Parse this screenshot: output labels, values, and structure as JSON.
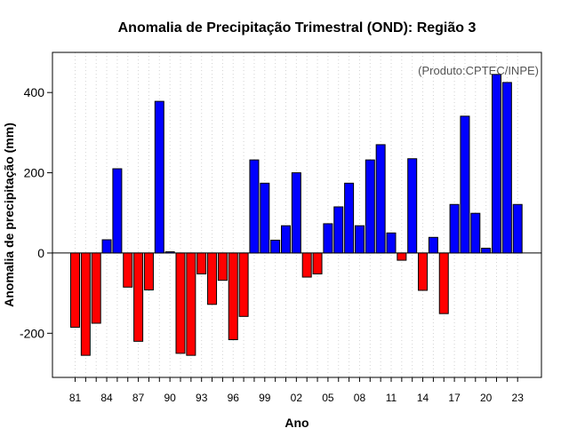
{
  "chart_data": {
    "type": "bar",
    "title": "Anomalia de Precipitação Trimestral (OND): Região 3",
    "xlabel": "Ano",
    "ylabel": "Anomalia de precipitação (mm)",
    "credit": "(Produto:CPTEC/INPE)",
    "ylim": [
      -310,
      500
    ],
    "yticks": [
      -200,
      0,
      200,
      400
    ],
    "ytick_labels": [
      "-200",
      "0",
      "200",
      "400"
    ],
    "xtick_labels": [
      "81",
      "84",
      "87",
      "90",
      "93",
      "96",
      "99",
      "02",
      "05",
      "08",
      "11",
      "14",
      "17",
      "20",
      "23"
    ],
    "grid": "vertical dotted",
    "positive_color": "#0000ff",
    "negative_color": "#ff0000",
    "categories": [
      "1981",
      "1982",
      "1983",
      "1984",
      "1985",
      "1986",
      "1987",
      "1988",
      "1989",
      "1990",
      "1991",
      "1992",
      "1993",
      "1994",
      "1995",
      "1996",
      "1997",
      "1998",
      "1999",
      "2000",
      "2001",
      "2002",
      "2003",
      "2004",
      "2005",
      "2006",
      "2007",
      "2008",
      "2009",
      "2010",
      "2011",
      "2012",
      "2013",
      "2014",
      "2015",
      "2016",
      "2017",
      "2018",
      "2019",
      "2020",
      "2021",
      "2022",
      "2023"
    ],
    "values": [
      -185,
      -255,
      -175,
      33,
      210,
      -85,
      -220,
      -92,
      378,
      3,
      -250,
      -255,
      -52,
      -128,
      -68,
      -216,
      -158,
      232,
      174,
      32,
      68,
      200,
      -60,
      -52,
      73,
      115,
      174,
      68,
      232,
      270,
      50,
      -18,
      235,
      -93,
      39,
      -151,
      121,
      341,
      99,
      12,
      445,
      425,
      121
    ]
  }
}
